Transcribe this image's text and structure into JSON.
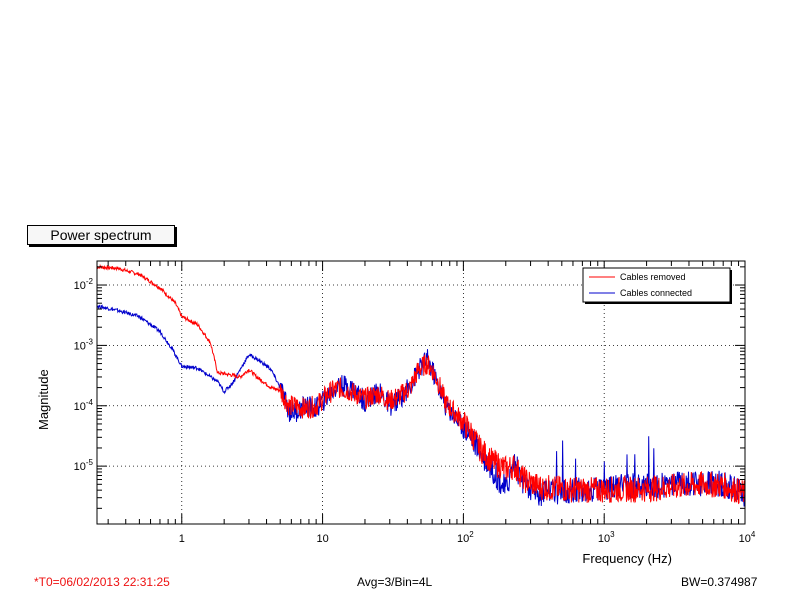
{
  "chart_data": {
    "type": "line",
    "title": "Power spectrum",
    "xlabel": "Frequency (Hz)",
    "ylabel": "Magnitude",
    "x_scale": "log",
    "y_scale": "log",
    "xlim": [
      0.25,
      10000
    ],
    "ylim": [
      1.1e-06,
      0.025
    ],
    "grid": true,
    "legend_position": "top-right",
    "x_ticks": [
      {
        "value": 1,
        "label": "1"
      },
      {
        "value": 10,
        "label": "10"
      },
      {
        "value": 100,
        "label": "10^2"
      },
      {
        "value": 1000,
        "label": "10^3"
      },
      {
        "value": 10000,
        "label": "10^4"
      }
    ],
    "y_ticks": [
      {
        "value": 1e-05,
        "label": "10^-5"
      },
      {
        "value": 0.0001,
        "label": "10^-4"
      },
      {
        "value": 0.001,
        "label": "10^-3"
      },
      {
        "value": 0.01,
        "label": "10^-2"
      }
    ],
    "series": [
      {
        "name": "Cables removed",
        "color": "#ff0000",
        "x": [
          0.25,
          0.35,
          0.5,
          0.7,
          0.9,
          1.0,
          1.3,
          1.6,
          1.8,
          2.0,
          2.3,
          2.6,
          3.0,
          3.4,
          3.8,
          4.3,
          5.0,
          5.8,
          6.5,
          7.5,
          9,
          11,
          13,
          16,
          20,
          25,
          30,
          36,
          42,
          48,
          55,
          60,
          66,
          75,
          90,
          110,
          130,
          160,
          200,
          230,
          270,
          350,
          500,
          800,
          1200,
          2000,
          3000,
          5000,
          7000,
          10000
        ],
        "y": [
          0.02,
          0.019,
          0.015,
          0.009,
          0.005,
          0.003,
          0.0022,
          0.0011,
          0.00035,
          0.00034,
          0.00032,
          0.0003,
          0.0004,
          0.0003,
          0.00025,
          0.0002,
          0.00018,
          0.0001,
          0.0001,
          9e-05,
          0.0001,
          0.00016,
          0.0002,
          0.00017,
          0.00013,
          0.00016,
          0.00012,
          0.00015,
          0.0002,
          0.0004,
          0.0005,
          0.0004,
          0.00025,
          0.00011,
          7e-05,
          4e-05,
          2e-05,
          1.2e-05,
          9e-06,
          1e-05,
          6e-06,
          4.5e-06,
          4.2e-06,
          4e-06,
          4.1e-06,
          4.2e-06,
          4.5e-06,
          5e-06,
          4.8e-06,
          3.5e-06
        ]
      },
      {
        "name": "Cables connected",
        "color": "#0000cc",
        "x": [
          0.25,
          0.35,
          0.5,
          0.7,
          0.85,
          1.0,
          1.3,
          1.6,
          1.8,
          2.0,
          2.3,
          2.6,
          3.0,
          3.4,
          3.8,
          4.3,
          5.0,
          5.8,
          6.5,
          7.5,
          9,
          11,
          13,
          16,
          20,
          25,
          30,
          36,
          42,
          48,
          55,
          60,
          66,
          75,
          90,
          110,
          130,
          160,
          200,
          230,
          270,
          350,
          500,
          800,
          1200,
          2000,
          3000,
          5000,
          7000,
          10000
        ],
        "y": [
          0.0045,
          0.0038,
          0.003,
          0.0017,
          0.0009,
          0.00045,
          0.00042,
          0.0003,
          0.00025,
          0.00017,
          0.00024,
          0.0004,
          0.0007,
          0.0006,
          0.0005,
          0.0004,
          0.0002,
          8e-05,
          8e-05,
          0.0001,
          9e-05,
          0.00015,
          0.00022,
          0.0002,
          0.00012,
          0.00017,
          0.0001,
          0.00014,
          0.00022,
          0.00038,
          0.0006,
          0.0004,
          0.00022,
          0.0001,
          6e-05,
          3.5e-05,
          1.8e-05,
          9e-06,
          4e-06,
          1.2e-05,
          4.5e-06,
          3.5e-06,
          3.8e-06,
          4.2e-06,
          4.5e-06,
          4.8e-06,
          5e-06,
          5.2e-06,
          5e-06,
          3.5e-06
        ]
      }
    ]
  },
  "footer": {
    "time_label": "*T0=06/02/2013 22:31:25",
    "avg_label": "Avg=3/Bin=4L",
    "bw_label": "BW=0.374987"
  }
}
